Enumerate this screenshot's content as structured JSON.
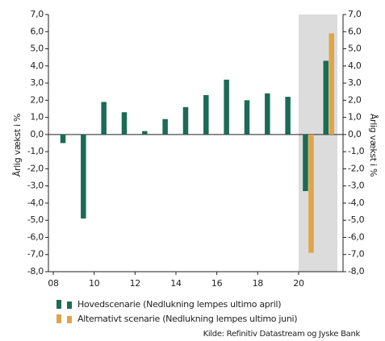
{
  "chart_data": {
    "type": "bar",
    "y_label": "Årlig vækst i %",
    "source": "Kilde: Refinitiv Datastream og Jyske Bank",
    "categories": [
      "08",
      null,
      "10",
      null,
      "12",
      null,
      "14",
      null,
      "16",
      null,
      "18",
      null,
      "20",
      null
    ],
    "series": [
      {
        "name": "Hovedscenarie (Nedlukning lempes ultimo april)",
        "color": "#1b6b55",
        "values": [
          -0.5,
          -4.9,
          1.9,
          1.3,
          0.2,
          0.9,
          1.6,
          2.3,
          3.2,
          2.0,
          2.4,
          2.2,
          -3.3,
          4.3
        ]
      },
      {
        "name": "Alternativt scenarie (Nedlukning lempes ultimo juni)",
        "color": "#e0a548",
        "values": [
          null,
          null,
          null,
          null,
          null,
          null,
          null,
          null,
          null,
          null,
          null,
          null,
          -6.9,
          5.9
        ]
      }
    ],
    "ylim": [
      -8,
      7
    ],
    "yticks": [
      {
        "value": 7,
        "label": "7,0"
      },
      {
        "value": 6,
        "label": "6,0"
      },
      {
        "value": 5,
        "label": "5,0"
      },
      {
        "value": 4,
        "label": "4,0"
      },
      {
        "value": 3,
        "label": "3,0"
      },
      {
        "value": 2,
        "label": "2,0"
      },
      {
        "value": 1,
        "label": "1,0"
      },
      {
        "value": 0,
        "label": "0,0"
      },
      {
        "value": -1,
        "label": "-1,0"
      },
      {
        "value": -2,
        "label": "-2,0"
      },
      {
        "value": -3,
        "label": "-3,0"
      },
      {
        "value": -4,
        "label": "-4,0"
      },
      {
        "value": -5,
        "label": "-5,0"
      },
      {
        "value": -6,
        "label": "-6,0"
      },
      {
        "value": -7,
        "label": "-7,0"
      },
      {
        "value": -8,
        "label": "-8,0"
      }
    ]
  }
}
